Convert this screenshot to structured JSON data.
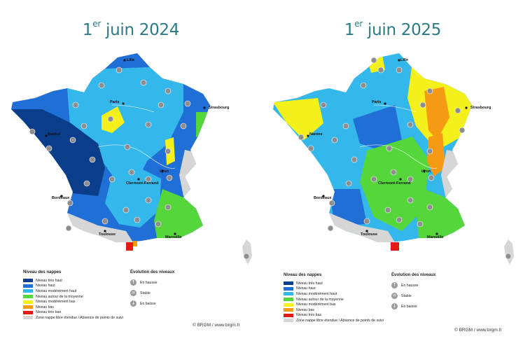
{
  "left": {
    "title_main": "juin 2024",
    "title_num": "1",
    "title_sup": "er",
    "cities": [
      "Lille",
      "Paris",
      "Strasbourg",
      "Nantes",
      "Lyon",
      "Clermont-Ferrand",
      "Bordeaux",
      "Toulouse",
      "Marseille"
    ],
    "legend_title": "Niveau des nappes",
    "legend_items": [
      {
        "label": "Niveau très haut",
        "color": "#0a3e8a"
      },
      {
        "label": "Niveau haut",
        "color": "#1f6fd6"
      },
      {
        "label": "Niveau modérément haut",
        "color": "#34b7ea"
      },
      {
        "label": "Niveau autour de la moyenne",
        "color": "#55d63a"
      },
      {
        "label": "Niveau modérément bas",
        "color": "#f4f01a"
      },
      {
        "label": "Niveau bas",
        "color": "#f69a14"
      },
      {
        "label": "Niveau très bas",
        "color": "#e31b14"
      },
      {
        "label": "Zone nappe libre étendue / Absence de points de suivi",
        "color": "#d6d6d6"
      }
    ],
    "evolution_title": "Évolution des niveaux",
    "evolution_items": [
      {
        "label": "En hausse",
        "icon": "up-arrow-icon",
        "glyph": "↑"
      },
      {
        "label": "Stable",
        "icon": "equals-icon",
        "glyph": "="
      },
      {
        "label": "En baisse",
        "icon": "down-arrow-icon",
        "glyph": "↓"
      }
    ],
    "credit": "© BRGM / www.brgm.fr"
  },
  "right": {
    "title_main": "juin 2025",
    "title_num": "1",
    "title_sup": "er",
    "cities": [
      "Lille",
      "Paris",
      "Strasbourg",
      "Nantes",
      "Lyon",
      "Clermont-Ferrand",
      "Bordeaux",
      "Toulouse",
      "Marseille"
    ],
    "legend_title": "Niveau des nappes",
    "legend_items": [
      {
        "label": "Niveau très haut",
        "color": "#0a3e8a"
      },
      {
        "label": "Niveau haut",
        "color": "#1f6fd6"
      },
      {
        "label": "Niveau modérément haut",
        "color": "#34b7ea"
      },
      {
        "label": "Niveau autour de la moyenne",
        "color": "#55d63a"
      },
      {
        "label": "Niveau modérément bas",
        "color": "#f4f01a"
      },
      {
        "label": "Niveau bas",
        "color": "#f69a14"
      },
      {
        "label": "Niveau très bas",
        "color": "#e31b14"
      },
      {
        "label": "Zone nappe libre étendue / Absence de points de suivi",
        "color": "#d6d6d6"
      }
    ],
    "evolution_title": "Évolution des niveaux",
    "evolution_items": [
      {
        "label": "En hausse",
        "icon": "up-arrow-icon",
        "glyph": "↑"
      },
      {
        "label": "Stable",
        "icon": "equals-icon",
        "glyph": "="
      },
      {
        "label": "En baisse",
        "icon": "down-arrow-icon",
        "glyph": "↓"
      }
    ],
    "credit": "© BRGM / www.brgm.fr"
  }
}
